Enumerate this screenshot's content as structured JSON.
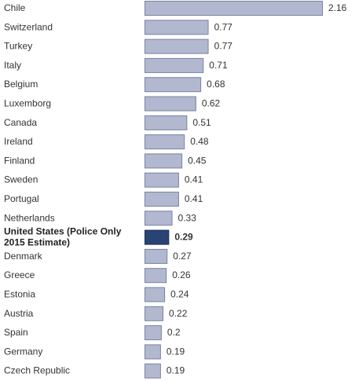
{
  "chart_data": {
    "type": "bar",
    "orientation": "horizontal",
    "categories": [
      "Chile",
      "Switzerland",
      "Turkey",
      "Italy",
      "Belgium",
      "Luxemborg",
      "Canada",
      "Ireland",
      "Finland",
      "Sweden",
      "Portugal",
      "Netherlands",
      "United States (Police Only 2015 Estimate)",
      "Denmark",
      "Greece",
      "Estonia",
      "Austria",
      "Spain",
      "Germany",
      "Czech Republic"
    ],
    "category_lines": [
      [
        "Chile"
      ],
      [
        "Switzerland"
      ],
      [
        "Turkey"
      ],
      [
        "Italy"
      ],
      [
        "Belgium"
      ],
      [
        "Luxemborg"
      ],
      [
        "Canada"
      ],
      [
        "Ireland"
      ],
      [
        "Finland"
      ],
      [
        "Sweden"
      ],
      [
        "Portugal"
      ],
      [
        "Netherlands"
      ],
      [
        "United States (Police Only",
        "2015 Estimate)"
      ],
      [
        "Denmark"
      ],
      [
        "Greece"
      ],
      [
        "Estonia"
      ],
      [
        "Austria"
      ],
      [
        "Spain"
      ],
      [
        "Germany"
      ],
      [
        "Czech Republic"
      ]
    ],
    "values": [
      2.16,
      0.77,
      0.77,
      0.71,
      0.68,
      0.62,
      0.51,
      0.48,
      0.45,
      0.41,
      0.41,
      0.33,
      0.29,
      0.27,
      0.26,
      0.24,
      0.22,
      0.2,
      0.19,
      0.19
    ],
    "value_labels": [
      "2.16",
      "0.77",
      "0.77",
      "0.71",
      "0.68",
      "0.62",
      "0.51",
      "0.48",
      "0.45",
      "0.41",
      "0.41",
      "0.33",
      "0.29",
      "0.27",
      "0.26",
      "0.24",
      "0.22",
      "0.2",
      "0.19",
      "0.19"
    ],
    "highlight_category": "United States (Police Only 2015 Estimate)",
    "xlim": [
      0,
      2.16
    ],
    "grid": false,
    "title": "",
    "xlabel": "",
    "ylabel": "",
    "colors": {
      "bar_fill": "#b1b8d0",
      "bar_stroke": "#7a829e",
      "highlight_fill": "#2a4375",
      "highlight_stroke": "#1b2c52",
      "text": "#333333"
    }
  }
}
